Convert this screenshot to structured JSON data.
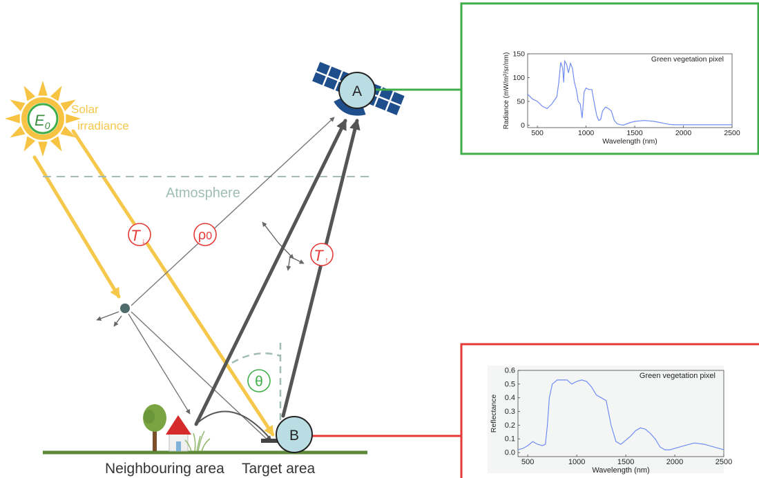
{
  "labels": {
    "solar_line1": "Solar",
    "solar_line2": "irradiance",
    "e0_base": "E",
    "e0_sub": "0",
    "atmosphere": "Atmosphere",
    "t_down_base": "T",
    "t_down_arrow": "↓",
    "rho_base": "ρ",
    "rho_sub": "0",
    "t_up_base": "T",
    "t_up_arrow": "↑",
    "theta": "θ",
    "point_a": "A",
    "point_b": "B",
    "neighbouring": "Neighbouring area",
    "target": "Target area"
  },
  "colors": {
    "sun": "#f7c342",
    "sun_ray": "#f5c84c",
    "sun_core_ring": "#3fae49",
    "atmosphere_line": "#9fbdb6",
    "atmosphere_text": "#9fbdb6",
    "red_circle": "#e53935",
    "green_circle": "#3fae49",
    "gray_path": "#666666",
    "dark_path": "#555555",
    "node_fill": "#b9dde2",
    "ground": "#5c8a3a",
    "satellite": "#1f4e8c",
    "green_box": "#3fae49",
    "red_box": "#e53935",
    "plot_line": "#6f8cf2"
  },
  "chart_data": [
    {
      "type": "line",
      "title": "Green vegetation pixel",
      "xlabel": "Wavelength (nm)",
      "ylabel": "Radiance (mW/m²/sr/nm)",
      "xlim": [
        400,
        2500
      ],
      "ylim": [
        -5,
        150
      ],
      "xticks": [
        500,
        1000,
        1500,
        2000,
        2500
      ],
      "yticks": [
        0,
        50,
        100,
        150
      ],
      "x": [
        400,
        450,
        500,
        550,
        600,
        650,
        700,
        720,
        740,
        760,
        770,
        780,
        800,
        820,
        840,
        860,
        880,
        900,
        920,
        940,
        960,
        980,
        1000,
        1030,
        1060,
        1090,
        1110,
        1130,
        1150,
        1170,
        1200,
        1230,
        1260,
        1290,
        1320,
        1340,
        1360,
        1380,
        1420,
        1460,
        1500,
        1550,
        1600,
        1650,
        1700,
        1750,
        1800,
        1850,
        1900,
        2000,
        2100,
        2200,
        2300,
        2400,
        2500
      ],
      "y": [
        65,
        55,
        50,
        40,
        35,
        45,
        60,
        90,
        132,
        120,
        90,
        135,
        128,
        110,
        130,
        120,
        90,
        75,
        50,
        45,
        15,
        70,
        78,
        75,
        75,
        40,
        20,
        10,
        12,
        30,
        38,
        35,
        30,
        10,
        3,
        2,
        1,
        0,
        3,
        6,
        8,
        9,
        10,
        9,
        8,
        6,
        4,
        2,
        1,
        1,
        1,
        1,
        1,
        1,
        1
      ]
    },
    {
      "type": "line",
      "title": "Green vegetation pixel",
      "xlabel": "Wavelength (nm)",
      "ylabel": "Reflectance",
      "xlim": [
        400,
        2500
      ],
      "ylim": [
        -0.03,
        0.6
      ],
      "xticks": [
        500,
        1000,
        1500,
        2000,
        2500
      ],
      "yticks": [
        0.0,
        0.1,
        0.2,
        0.3,
        0.4,
        0.5,
        0.6
      ],
      "x": [
        400,
        450,
        500,
        550,
        600,
        650,
        680,
        700,
        720,
        750,
        800,
        900,
        950,
        1000,
        1050,
        1100,
        1150,
        1200,
        1250,
        1300,
        1350,
        1400,
        1450,
        1500,
        1550,
        1600,
        1650,
        1700,
        1750,
        1800,
        1850,
        1900,
        1950,
        2000,
        2100,
        2200,
        2300,
        2400,
        2500
      ],
      "y": [
        0.02,
        0.03,
        0.05,
        0.08,
        0.06,
        0.05,
        0.06,
        0.2,
        0.4,
        0.5,
        0.53,
        0.53,
        0.5,
        0.52,
        0.53,
        0.52,
        0.48,
        0.42,
        0.4,
        0.38,
        0.2,
        0.08,
        0.06,
        0.09,
        0.12,
        0.16,
        0.18,
        0.17,
        0.14,
        0.1,
        0.04,
        0.02,
        0.02,
        0.03,
        0.05,
        0.07,
        0.06,
        0.04,
        0.02
      ]
    }
  ]
}
